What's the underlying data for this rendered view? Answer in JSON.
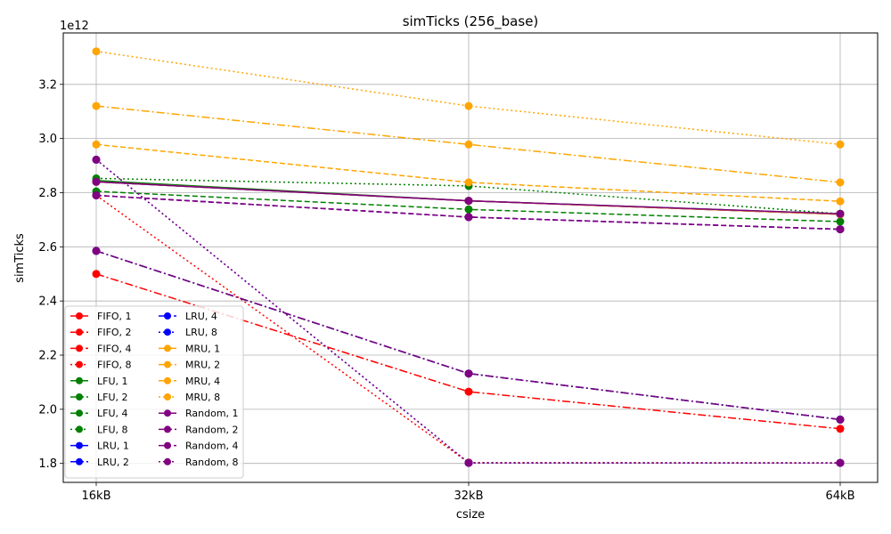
{
  "chart_data": {
    "type": "line",
    "title": "simTicks (256_base)",
    "xlabel": "csize",
    "ylabel": "simTicks",
    "y_offset_label": "1e12",
    "categories": [
      "16kB",
      "32kB",
      "64kB"
    ],
    "ylim": [
      1.73,
      3.39
    ],
    "yticks": [
      1.8,
      2.0,
      2.2,
      2.4,
      2.6,
      2.8,
      3.0,
      3.2
    ],
    "ytick_labels": [
      "1.8",
      "2.0",
      "2.2",
      "2.4",
      "2.6",
      "2.8",
      "3.0",
      "3.2"
    ],
    "grid": true,
    "legend_position": "lower-left",
    "legend_columns": 2,
    "series": [
      {
        "name": "FIFO, 1",
        "color": "#ff0000",
        "style": "solid",
        "values": [
          2.84,
          2.77,
          2.72
        ]
      },
      {
        "name": "FIFO, 2",
        "color": "#ff0000",
        "style": "dashed",
        "values": [
          2.79,
          2.71,
          2.665
        ]
      },
      {
        "name": "FIFO, 4",
        "color": "#ff0000",
        "style": "dashdot",
        "values": [
          2.5,
          2.065,
          1.928
        ]
      },
      {
        "name": "FIFO, 8",
        "color": "#ff0000",
        "style": "dotted",
        "values": [
          2.79,
          1.803,
          1.802
        ]
      },
      {
        "name": "LFU, 1",
        "color": "#008000",
        "style": "solid",
        "values": [
          2.845,
          2.77,
          2.722
        ]
      },
      {
        "name": "LFU, 2",
        "color": "#008000",
        "style": "dashed",
        "values": [
          2.805,
          2.738,
          2.693
        ]
      },
      {
        "name": "LFU, 4",
        "color": "#008000",
        "style": "dashdot",
        "values": [
          2.585,
          2.132,
          1.962
        ]
      },
      {
        "name": "LFU, 8",
        "color": "#008000",
        "style": "dotted",
        "values": [
          2.853,
          2.825,
          2.722
        ]
      },
      {
        "name": "LRU, 1",
        "color": "#0000ff",
        "style": "solid",
        "values": [
          2.84,
          2.77,
          2.72
        ]
      },
      {
        "name": "LRU, 2",
        "color": "#0000ff",
        "style": "dashed",
        "values": [
          2.79,
          2.71,
          2.665
        ]
      },
      {
        "name": "LRU, 4",
        "color": "#0000ff",
        "style": "dashdot",
        "values": [
          2.585,
          2.132,
          1.962
        ]
      },
      {
        "name": "LRU, 8",
        "color": "#0000ff",
        "style": "dotted",
        "values": [
          2.922,
          1.802,
          1.802
        ]
      },
      {
        "name": "MRU, 1",
        "color": "#ffa500",
        "style": "solid",
        "values": [
          2.84,
          2.77,
          2.72
        ]
      },
      {
        "name": "MRU, 2",
        "color": "#ffa500",
        "style": "dashed",
        "values": [
          2.978,
          2.838,
          2.768
        ]
      },
      {
        "name": "MRU, 4",
        "color": "#ffa500",
        "style": "dashdot",
        "values": [
          3.12,
          2.978,
          2.838
        ]
      },
      {
        "name": "MRU, 8",
        "color": "#ffa500",
        "style": "dotted",
        "values": [
          3.322,
          3.12,
          2.978
        ]
      },
      {
        "name": "Random, 1",
        "color": "#800080",
        "style": "solid",
        "values": [
          2.84,
          2.77,
          2.722
        ]
      },
      {
        "name": "Random, 2",
        "color": "#800080",
        "style": "dashed",
        "values": [
          2.79,
          2.71,
          2.665
        ]
      },
      {
        "name": "Random, 4",
        "color": "#800080",
        "style": "dashdot",
        "values": [
          2.585,
          2.132,
          1.962
        ]
      },
      {
        "name": "Random, 8",
        "color": "#800080",
        "style": "dotted",
        "values": [
          2.922,
          1.802,
          1.802
        ]
      }
    ]
  }
}
